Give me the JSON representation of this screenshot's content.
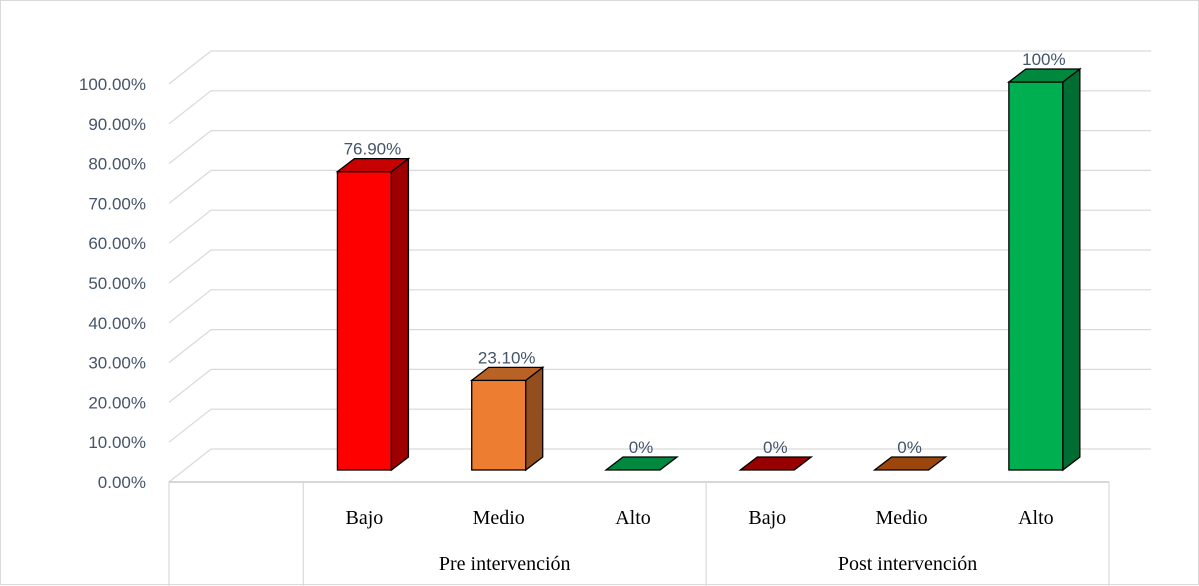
{
  "chart_data": {
    "type": "bar",
    "title": "",
    "xlabel": "",
    "ylabel": "",
    "ylim": [
      0,
      100
    ],
    "y_ticks": [
      "0.00%",
      "10.00%",
      "20.00%",
      "30.00%",
      "40.00%",
      "50.00%",
      "60.00%",
      "70.00%",
      "80.00%",
      "90.00%",
      "100.00%"
    ],
    "groups": [
      "Pre intervención",
      "Post intervención"
    ],
    "categories": [
      "Bajo",
      "Medio",
      "Alto",
      "Bajo",
      "Medio",
      "Alto"
    ],
    "values": [
      76.9,
      23.1,
      0,
      0,
      0,
      100
    ],
    "data_labels": [
      "76.90%",
      "23.10%",
      "0%",
      "0%",
      "0%",
      "100%"
    ],
    "colors": [
      "#ff0000",
      "#ed7d31",
      "#00b050",
      "#c00000",
      "#c55a11",
      "#00b050"
    ],
    "grid": true,
    "legend": "none",
    "style": "3d-column"
  }
}
